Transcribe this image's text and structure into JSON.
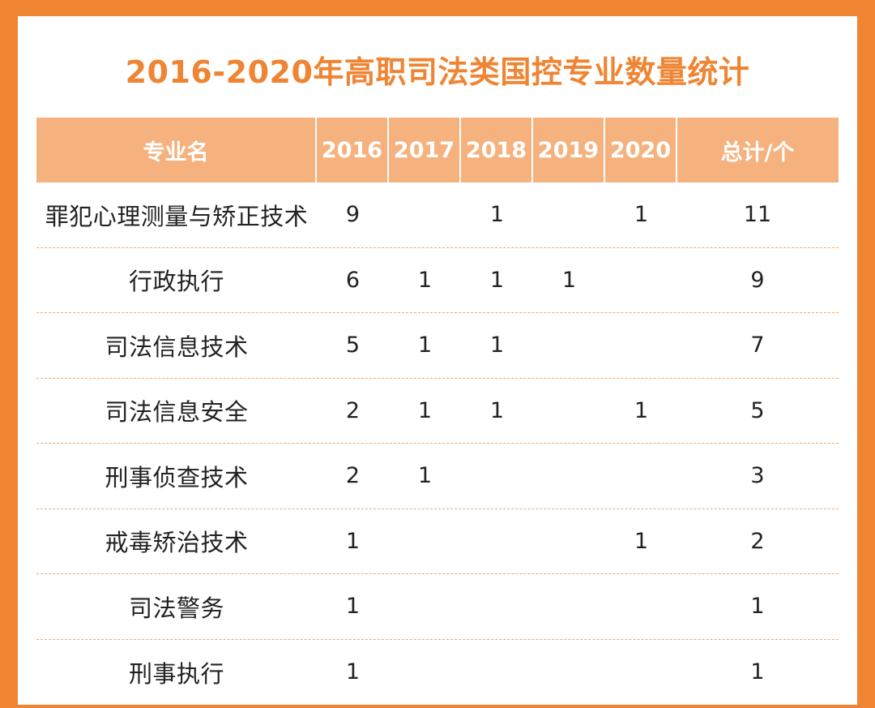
{
  "title": "2016-2020年高职司法类国控专业数量统计",
  "colors": {
    "border": "#ef8533",
    "title": "#ef8533",
    "header_bg": "#f5b27e",
    "row_divider": "#f0a870"
  },
  "table": {
    "headers": [
      "专业名",
      "2016",
      "2017",
      "2018",
      "2019",
      "2020",
      "总计/个"
    ],
    "rows": [
      {
        "name": "罪犯心理测量与矫正技术",
        "y2016": "9",
        "y2017": "",
        "y2018": "1",
        "y2019": "",
        "y2020": "1",
        "total": "11"
      },
      {
        "name": "行政执行",
        "y2016": "6",
        "y2017": "1",
        "y2018": "1",
        "y2019": "1",
        "y2020": "",
        "total": "9"
      },
      {
        "name": "司法信息技术",
        "y2016": "5",
        "y2017": "1",
        "y2018": "1",
        "y2019": "",
        "y2020": "",
        "total": "7"
      },
      {
        "name": "司法信息安全",
        "y2016": "2",
        "y2017": "1",
        "y2018": "1",
        "y2019": "",
        "y2020": "1",
        "total": "5"
      },
      {
        "name": "刑事侦查技术",
        "y2016": "2",
        "y2017": "1",
        "y2018": "",
        "y2019": "",
        "y2020": "",
        "total": "3"
      },
      {
        "name": "戒毒矫治技术",
        "y2016": "1",
        "y2017": "",
        "y2018": "",
        "y2019": "",
        "y2020": "1",
        "total": "2"
      },
      {
        "name": "司法警务",
        "y2016": "1",
        "y2017": "",
        "y2018": "",
        "y2019": "",
        "y2020": "",
        "total": "1"
      },
      {
        "name": "刑事执行",
        "y2016": "1",
        "y2017": "",
        "y2018": "",
        "y2019": "",
        "y2020": "",
        "total": "1"
      }
    ]
  }
}
